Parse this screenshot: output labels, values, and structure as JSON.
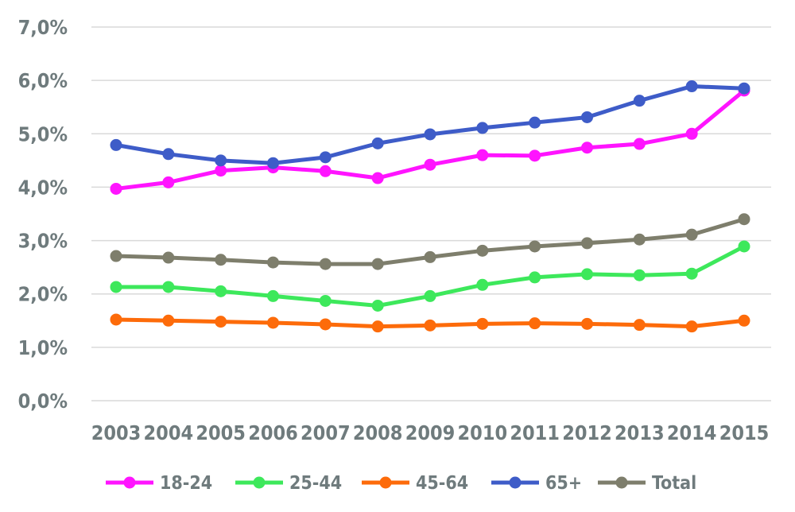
{
  "chart_data": {
    "type": "line",
    "title": "",
    "xlabel": "",
    "ylabel": "",
    "x": [
      "2003",
      "2004",
      "2005",
      "2006",
      "2007",
      "2008",
      "2009",
      "2010",
      "2011",
      "2012",
      "2013",
      "2014",
      "2015"
    ],
    "ylim": [
      0,
      7
    ],
    "y_ticks": [
      0,
      1,
      2,
      3,
      4,
      5,
      6,
      7
    ],
    "y_tick_labels": [
      "0,0%",
      "1,0%",
      "2,0%",
      "3,0%",
      "4,0%",
      "5,0%",
      "6,0%",
      "7,0%"
    ],
    "grid": "horizontal",
    "legend_position": "bottom",
    "series": [
      {
        "name": "18-24",
        "color": "#ff14ff",
        "values": [
          3.97,
          4.09,
          4.31,
          4.37,
          4.3,
          4.17,
          4.42,
          4.6,
          4.59,
          4.74,
          4.81,
          5.0,
          5.81
        ]
      },
      {
        "name": "25-44",
        "color": "#3de85b",
        "values": [
          2.13,
          2.13,
          2.05,
          1.96,
          1.87,
          1.78,
          1.96,
          2.17,
          2.31,
          2.37,
          2.35,
          2.38,
          2.89
        ]
      },
      {
        "name": "45-64",
        "color": "#fd6b0a",
        "values": [
          1.52,
          1.5,
          1.48,
          1.46,
          1.43,
          1.39,
          1.41,
          1.44,
          1.45,
          1.44,
          1.42,
          1.39,
          1.5
        ]
      },
      {
        "name": "65+",
        "color": "#3e5cc8",
        "values": [
          4.79,
          4.62,
          4.5,
          4.45,
          4.56,
          4.82,
          4.99,
          5.11,
          5.21,
          5.31,
          5.62,
          5.89,
          5.85
        ]
      },
      {
        "name": "Total",
        "color": "#7e7e6c",
        "values": [
          2.71,
          2.68,
          2.64,
          2.59,
          2.56,
          2.56,
          2.69,
          2.81,
          2.89,
          2.95,
          3.02,
          3.11,
          3.4
        ]
      }
    ]
  }
}
